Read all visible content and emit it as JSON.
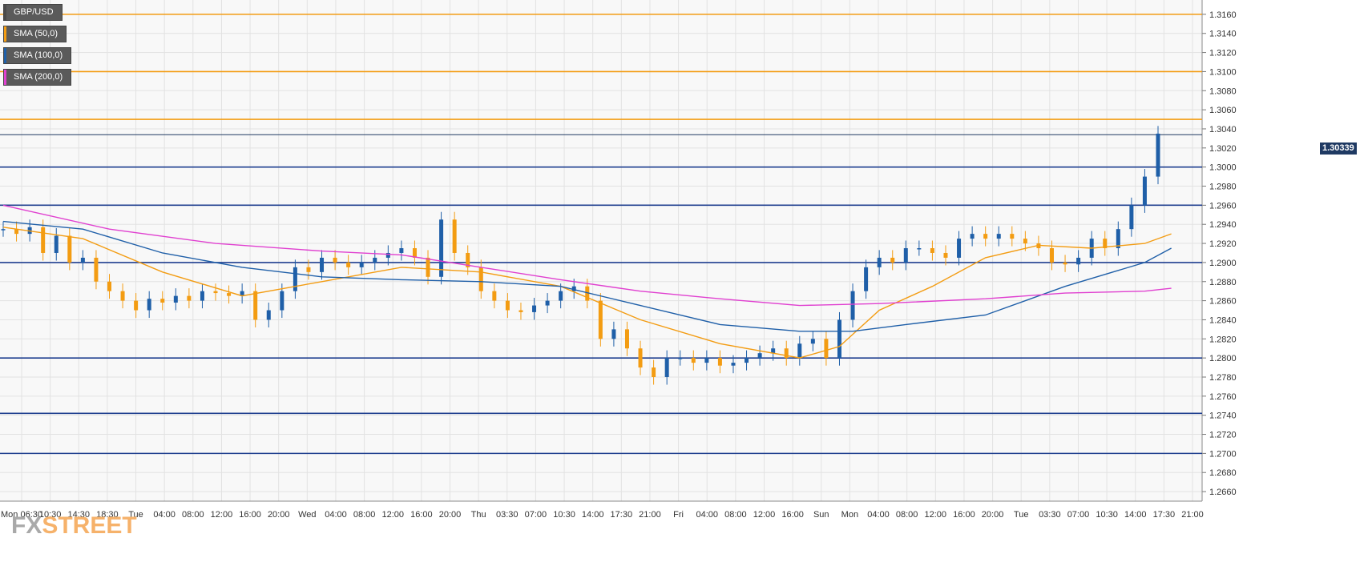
{
  "legend": [
    {
      "label": "GBP/USD",
      "color": "#4a4a4a"
    },
    {
      "label": "SMA (50,0)",
      "color": "#f39c12"
    },
    {
      "label": "SMA (100,0)",
      "color": "#1f5fa8"
    },
    {
      "label": "SMA (200,0)",
      "color": "#e040d0"
    }
  ],
  "watermark": {
    "fx": "FX",
    "street": "STREET"
  },
  "colors": {
    "bull": "#1f5fa8",
    "bear": "#f39c12",
    "orange_level": "#f39c12",
    "blue_level": "#1f3f8f",
    "sma50": "#f39c12",
    "sma100": "#1f5fa8",
    "sma200": "#e040d0"
  },
  "chart_data": {
    "type": "candlestick",
    "ylim": [
      1.265,
      1.3175
    ],
    "ytick_labels": [
      "1.2660",
      "1.2680",
      "1.2700",
      "1.2720",
      "1.2740",
      "1.2760",
      "1.2780",
      "1.2800",
      "1.2820",
      "1.2840",
      "1.2860",
      "1.2880",
      "1.2900",
      "1.2920",
      "1.2940",
      "1.2960",
      "1.2980",
      "1.3000",
      "1.3020",
      "1.3040",
      "1.3060",
      "1.3080",
      "1.3100",
      "1.3120",
      "1.3140",
      "1.3160"
    ],
    "xtick_labels": [
      "Mon 06:30",
      "10:30",
      "14:30",
      "18:30",
      "Tue",
      "04:00",
      "08:00",
      "12:00",
      "16:00",
      "20:00",
      "Wed",
      "04:00",
      "08:00",
      "12:00",
      "16:00",
      "20:00",
      "Thu",
      "03:30",
      "07:00",
      "10:30",
      "14:00",
      "17:30",
      "21:00",
      "Fri",
      "04:00",
      "08:00",
      "12:00",
      "16:00",
      "Sun",
      "Mon",
      "04:00",
      "08:00",
      "12:00",
      "16:00",
      "20:00",
      "Tue",
      "03:30",
      "07:00",
      "10:30",
      "14:00",
      "17:30",
      "21:00"
    ],
    "current_price": "1.30339",
    "horizontal_levels": [
      {
        "value": 1.316,
        "color": "orange"
      },
      {
        "value": 1.31,
        "color": "orange"
      },
      {
        "value": 1.305,
        "color": "orange"
      },
      {
        "value": 1.3,
        "color": "blue"
      },
      {
        "value": 1.296,
        "color": "blue"
      },
      {
        "value": 1.29,
        "color": "blue"
      },
      {
        "value": 1.28,
        "color": "blue"
      },
      {
        "value": 1.2742,
        "color": "blue"
      },
      {
        "value": 1.27,
        "color": "blue"
      }
    ],
    "price_path": [
      [
        0,
        1.2935
      ],
      [
        1,
        1.293
      ],
      [
        2,
        1.2937
      ],
      [
        3,
        1.291
      ],
      [
        4,
        1.2928
      ],
      [
        5,
        1.29
      ],
      [
        6,
        1.2905
      ],
      [
        7,
        1.288
      ],
      [
        8,
        1.287
      ],
      [
        9,
        1.286
      ],
      [
        10,
        1.285
      ],
      [
        11,
        1.2862
      ],
      [
        12,
        1.2858
      ],
      [
        13,
        1.2865
      ],
      [
        14,
        1.286
      ],
      [
        15,
        1.287
      ],
      [
        16,
        1.2868
      ],
      [
        17,
        1.2865
      ],
      [
        18,
        1.287
      ],
      [
        19,
        1.284
      ],
      [
        20,
        1.285
      ],
      [
        21,
        1.287
      ],
      [
        22,
        1.2895
      ],
      [
        23,
        1.289
      ],
      [
        24,
        1.2905
      ],
      [
        25,
        1.29
      ],
      [
        26,
        1.2895
      ],
      [
        27,
        1.29
      ],
      [
        28,
        1.2905
      ],
      [
        29,
        1.291
      ],
      [
        30,
        1.2915
      ],
      [
        31,
        1.2905
      ],
      [
        32,
        1.2885
      ],
      [
        33,
        1.2945
      ],
      [
        34,
        1.291
      ],
      [
        35,
        1.2895
      ],
      [
        36,
        1.287
      ],
      [
        37,
        1.286
      ],
      [
        38,
        1.285
      ],
      [
        39,
        1.2848
      ],
      [
        40,
        1.2855
      ],
      [
        41,
        1.286
      ],
      [
        42,
        1.287
      ],
      [
        43,
        1.2875
      ],
      [
        44,
        1.286
      ],
      [
        45,
        1.282
      ],
      [
        46,
        1.283
      ],
      [
        47,
        1.281
      ],
      [
        48,
        1.279
      ],
      [
        49,
        1.278
      ],
      [
        50,
        1.28
      ],
      [
        51,
        1.28
      ],
      [
        52,
        1.2795
      ],
      [
        53,
        1.28
      ],
      [
        54,
        1.2792
      ],
      [
        55,
        1.2795
      ],
      [
        56,
        1.28
      ],
      [
        57,
        1.2805
      ],
      [
        58,
        1.281
      ],
      [
        59,
        1.28
      ],
      [
        60,
        1.2815
      ],
      [
        61,
        1.282
      ],
      [
        62,
        1.28
      ],
      [
        63,
        1.284
      ],
      [
        64,
        1.287
      ],
      [
        65,
        1.2895
      ],
      [
        66,
        1.2905
      ],
      [
        67,
        1.29
      ],
      [
        68,
        1.2915
      ],
      [
        69,
        1.2915
      ],
      [
        70,
        1.291
      ],
      [
        71,
        1.2905
      ],
      [
        72,
        1.2925
      ],
      [
        73,
        1.293
      ],
      [
        74,
        1.2925
      ],
      [
        75,
        1.293
      ],
      [
        76,
        1.2925
      ],
      [
        77,
        1.292
      ],
      [
        78,
        1.2915
      ],
      [
        79,
        1.29
      ],
      [
        80,
        1.2898
      ],
      [
        81,
        1.2905
      ],
      [
        82,
        1.2925
      ],
      [
        83,
        1.2915
      ],
      [
        84,
        1.2935
      ],
      [
        85,
        1.296
      ],
      [
        86,
        1.299
      ],
      [
        87,
        1.3035
      ]
    ],
    "sma": [
      {
        "name": "SMA (50,0)",
        "color": "#f39c12",
        "points": [
          [
            0,
            1.2937
          ],
          [
            6,
            1.2925
          ],
          [
            12,
            1.289
          ],
          [
            18,
            1.2865
          ],
          [
            24,
            1.288
          ],
          [
            30,
            1.2895
          ],
          [
            36,
            1.289
          ],
          [
            42,
            1.2875
          ],
          [
            48,
            1.284
          ],
          [
            54,
            1.2815
          ],
          [
            60,
            1.28
          ],
          [
            63,
            1.2812
          ],
          [
            66,
            1.285
          ],
          [
            70,
            1.2875
          ],
          [
            74,
            1.2905
          ],
          [
            78,
            1.2918
          ],
          [
            82,
            1.2915
          ],
          [
            86,
            1.292
          ],
          [
            88,
            1.293
          ]
        ]
      },
      {
        "name": "SMA (100,0)",
        "color": "#1f5fa8",
        "points": [
          [
            0,
            1.2943
          ],
          [
            6,
            1.2935
          ],
          [
            12,
            1.291
          ],
          [
            18,
            1.2895
          ],
          [
            24,
            1.2885
          ],
          [
            30,
            1.2882
          ],
          [
            36,
            1.288
          ],
          [
            42,
            1.2875
          ],
          [
            48,
            1.2855
          ],
          [
            54,
            1.2835
          ],
          [
            60,
            1.2828
          ],
          [
            64,
            1.2828
          ],
          [
            68,
            1.2835
          ],
          [
            74,
            1.2845
          ],
          [
            80,
            1.2875
          ],
          [
            86,
            1.29
          ],
          [
            88,
            1.2915
          ]
        ]
      },
      {
        "name": "SMA (200,0)",
        "color": "#e040d0",
        "points": [
          [
            0,
            1.296
          ],
          [
            8,
            1.2935
          ],
          [
            16,
            1.292
          ],
          [
            24,
            1.2912
          ],
          [
            30,
            1.2908
          ],
          [
            36,
            1.2895
          ],
          [
            42,
            1.2882
          ],
          [
            48,
            1.287
          ],
          [
            54,
            1.2862
          ],
          [
            60,
            1.2855
          ],
          [
            66,
            1.2857
          ],
          [
            74,
            1.2862
          ],
          [
            80,
            1.2868
          ],
          [
            86,
            1.287
          ],
          [
            88,
            1.2873
          ]
        ]
      }
    ]
  }
}
